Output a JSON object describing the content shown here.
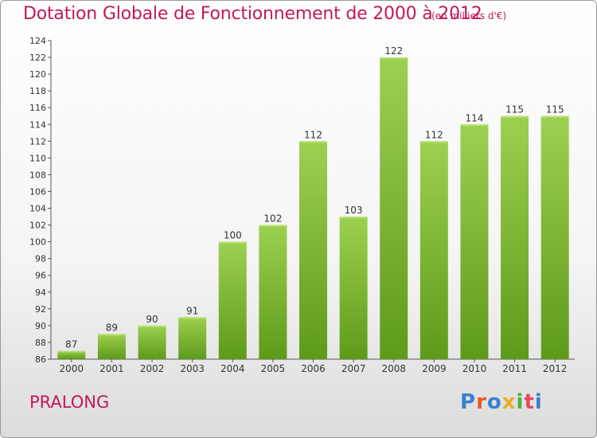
{
  "header": {
    "title": "Dotation Globale de Fonctionnement de 2000 à 2012",
    "subtitle": "(en milliers d'€)"
  },
  "footer": {
    "commune": "PRALONG",
    "brand": "Proxiti",
    "brand_colors": [
      "#3a7fd0",
      "#e8582a",
      "#3a7fd0",
      "#e8b020",
      "#4cb040",
      "#e84860",
      "#3a7fd0"
    ]
  },
  "chart_data": {
    "type": "bar",
    "categories": [
      "2000",
      "2001",
      "2002",
      "2003",
      "2004",
      "2005",
      "2006",
      "2007",
      "2008",
      "2009",
      "2010",
      "2011",
      "2012"
    ],
    "values": [
      87,
      89,
      90,
      91,
      100,
      102,
      112,
      103,
      122,
      112,
      114,
      115,
      115
    ],
    "ylim": [
      86,
      124
    ],
    "yticks": [
      86,
      88,
      90,
      92,
      94,
      96,
      98,
      100,
      102,
      104,
      106,
      108,
      110,
      112,
      114,
      116,
      118,
      120,
      122,
      124
    ],
    "grid": false,
    "bar_color": "#8cc63f",
    "bar_color_dark": "#5e9a1a"
  }
}
